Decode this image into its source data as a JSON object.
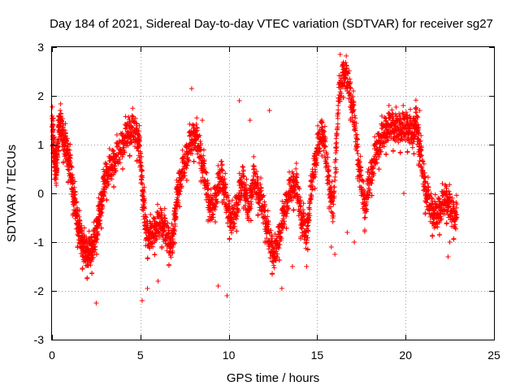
{
  "chart_data": {
    "type": "scatter",
    "title": "Day 184 of 2021, Sidereal Day-to-day VTEC variation (SDTVAR) for receiver sg27",
    "xlabel": "GPS time / hours",
    "ylabel": "SDTVAR / TECUs",
    "xlim": [
      0,
      25
    ],
    "ylim": [
      -3,
      3
    ],
    "xticks": [
      0,
      5,
      10,
      15,
      20,
      25
    ],
    "yticks": [
      -3,
      -2,
      -1,
      0,
      1,
      2,
      3
    ],
    "grid": true,
    "marker": "+",
    "color": "#ff0000",
    "series": [
      {
        "name": "SDTVAR",
        "anchors": [
          [
            0.0,
            1.35
          ],
          [
            0.15,
            0.7
          ],
          [
            0.25,
            0.4
          ],
          [
            0.4,
            1.5
          ],
          [
            0.6,
            1.2
          ],
          [
            0.8,
            0.9
          ],
          [
            1.0,
            0.6
          ],
          [
            1.2,
            0.0
          ],
          [
            1.4,
            -0.5
          ],
          [
            1.6,
            -0.9
          ],
          [
            1.8,
            -1.15
          ],
          [
            2.0,
            -1.25
          ],
          [
            2.2,
            -1.2
          ],
          [
            2.4,
            -1.0
          ],
          [
            2.6,
            -0.6
          ],
          [
            2.8,
            -0.2
          ],
          [
            3.0,
            0.3
          ],
          [
            3.3,
            0.5
          ],
          [
            3.6,
            0.7
          ],
          [
            4.0,
            1.0
          ],
          [
            4.3,
            1.25
          ],
          [
            4.6,
            1.3
          ],
          [
            4.9,
            1.1
          ],
          [
            5.1,
            0.2
          ],
          [
            5.3,
            -0.8
          ],
          [
            5.6,
            -0.9
          ],
          [
            5.9,
            -0.7
          ],
          [
            6.2,
            -0.6
          ],
          [
            6.5,
            -0.9
          ],
          [
            6.8,
            -1.1
          ],
          [
            7.0,
            -0.3
          ],
          [
            7.2,
            0.2
          ],
          [
            7.5,
            0.6
          ],
          [
            7.8,
            1.0
          ],
          [
            8.1,
            1.2
          ],
          [
            8.4,
            0.8
          ],
          [
            8.7,
            0.2
          ],
          [
            9.0,
            -0.4
          ],
          [
            9.3,
            0.0
          ],
          [
            9.6,
            0.4
          ],
          [
            9.9,
            -0.3
          ],
          [
            10.2,
            -0.6
          ],
          [
            10.5,
            -0.2
          ],
          [
            10.8,
            0.3
          ],
          [
            11.1,
            -0.4
          ],
          [
            11.4,
            0.3
          ],
          [
            11.7,
            0.0
          ],
          [
            12.0,
            -0.4
          ],
          [
            12.3,
            -1.0
          ],
          [
            12.6,
            -1.3
          ],
          [
            12.9,
            -0.8
          ],
          [
            13.2,
            -0.3
          ],
          [
            13.5,
            0.1
          ],
          [
            13.8,
            0.2
          ],
          [
            14.1,
            -0.5
          ],
          [
            14.4,
            -0.9
          ],
          [
            14.7,
            0.2
          ],
          [
            15.0,
            0.9
          ],
          [
            15.3,
            1.3
          ],
          [
            15.6,
            0.4
          ],
          [
            15.9,
            -0.4
          ],
          [
            16.2,
            1.9
          ],
          [
            16.5,
            2.5
          ],
          [
            16.8,
            2.2
          ],
          [
            17.1,
            1.5
          ],
          [
            17.4,
            0.4
          ],
          [
            17.7,
            -0.3
          ],
          [
            18.0,
            0.3
          ],
          [
            18.3,
            0.8
          ],
          [
            18.6,
            1.1
          ],
          [
            18.9,
            1.3
          ],
          [
            19.2,
            1.4
          ],
          [
            19.5,
            1.3
          ],
          [
            19.8,
            1.35
          ],
          [
            20.1,
            1.35
          ],
          [
            20.4,
            1.2
          ],
          [
            20.6,
            1.5
          ],
          [
            20.8,
            0.9
          ],
          [
            21.1,
            0.1
          ],
          [
            21.4,
            -0.3
          ],
          [
            21.7,
            -0.5
          ],
          [
            22.0,
            -0.3
          ],
          [
            22.3,
            -0.1
          ],
          [
            22.6,
            -0.4
          ],
          [
            22.9,
            -0.5
          ]
        ]
      }
    ],
    "scattered_outliers": [
      [
        2.5,
        -2.25
      ],
      [
        5.1,
        -2.2
      ],
      [
        5.4,
        -1.95
      ],
      [
        6.0,
        -1.8
      ],
      [
        7.9,
        2.15
      ],
      [
        8.5,
        1.5
      ],
      [
        9.4,
        -1.9
      ],
      [
        9.9,
        -2.1
      ],
      [
        10.6,
        1.9
      ],
      [
        11.2,
        1.5
      ],
      [
        12.3,
        1.7
      ],
      [
        13.0,
        -1.95
      ],
      [
        13.6,
        -1.5
      ],
      [
        14.4,
        -1.5
      ],
      [
        15.8,
        -1.1
      ],
      [
        16.0,
        -1.25
      ],
      [
        16.3,
        2.85
      ],
      [
        16.7,
        -0.8
      ],
      [
        17.1,
        -1.0
      ],
      [
        17.9,
        0.5
      ],
      [
        19.9,
        0.0
      ],
      [
        20.8,
        1.7
      ],
      [
        22.4,
        -1.3
      ],
      [
        22.5,
        -1.0
      ]
    ]
  }
}
